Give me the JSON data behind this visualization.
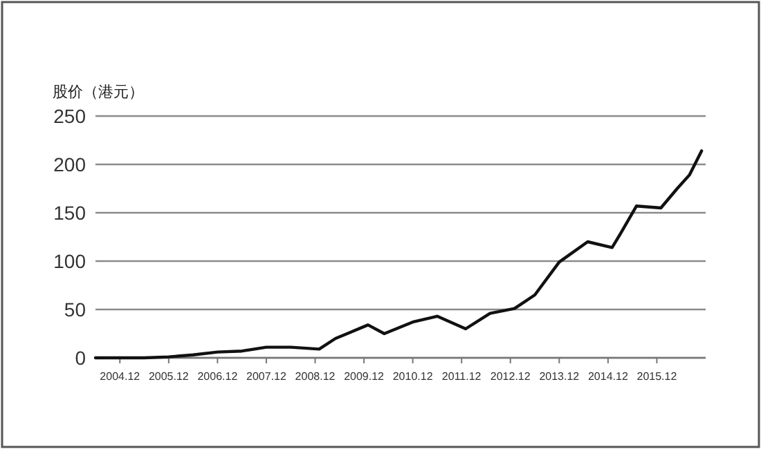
{
  "chart_data": {
    "type": "line",
    "ylabel": "股价（港元）",
    "x": [
      "2004-06",
      "2005-06",
      "2005-12",
      "2006-06",
      "2006-12",
      "2007-06",
      "2007-12",
      "2008-06",
      "2009-01",
      "2009-05",
      "2010-01",
      "2010-05",
      "2010-12",
      "2011-06",
      "2012-01",
      "2012-07",
      "2013-01",
      "2013-06",
      "2013-12",
      "2014-07",
      "2015-01",
      "2015-03",
      "2015-07",
      "2016-01",
      "2016-05",
      "2016-08",
      "2016-11"
    ],
    "series": [
      {
        "color": "#111111",
        "values": [
          0,
          0,
          1,
          3,
          6,
          7,
          11,
          11,
          9,
          20,
          34,
          25,
          37,
          43,
          30,
          46,
          51,
          65,
          99,
          120,
          114,
          128,
          157,
          155,
          175,
          189,
          214
        ]
      }
    ],
    "xlim": [
      "2004-06",
      "2016-12"
    ],
    "xticks": [
      {
        "value": "2004-12",
        "label": "2004.12"
      },
      {
        "value": "2005-12",
        "label": "2005.12"
      },
      {
        "value": "2006-12",
        "label": "2006.12"
      },
      {
        "value": "2007-12",
        "label": "2007.12"
      },
      {
        "value": "2008-12",
        "label": "2008.12"
      },
      {
        "value": "2009-12",
        "label": "2009.12"
      },
      {
        "value": "2010-12",
        "label": "2010.12"
      },
      {
        "value": "2011-12",
        "label": "2011.12"
      },
      {
        "value": "2012-12",
        "label": "2012.12"
      },
      {
        "value": "2013-12",
        "label": "2013.12"
      },
      {
        "value": "2014-12",
        "label": "2014.12"
      },
      {
        "value": "2015-12",
        "label": "2015.12"
      }
    ],
    "ylim": [
      0,
      250
    ],
    "yticks": [
      0,
      50,
      100,
      150,
      200,
      250
    ],
    "grid": "y",
    "marker": "none",
    "line_style": "solid"
  }
}
